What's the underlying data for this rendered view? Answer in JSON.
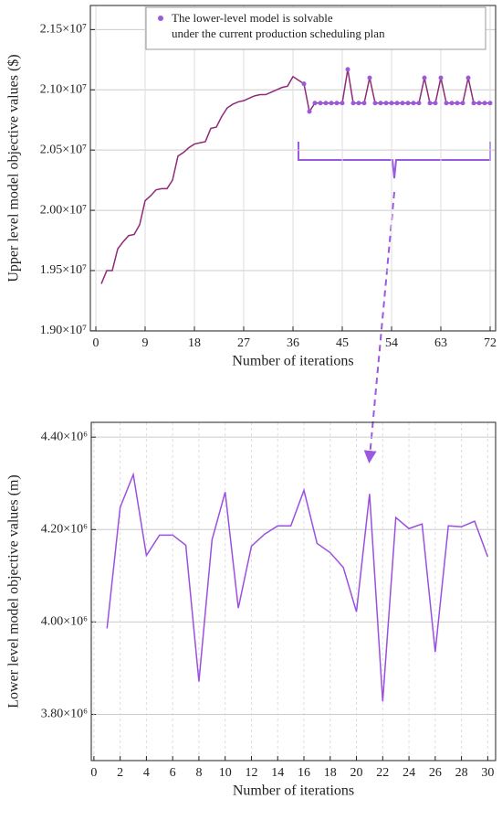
{
  "chart_data": [
    {
      "type": "line",
      "x_label": "Number of iterations",
      "y_label": "Upper level model objective values ($)",
      "x": [
        1,
        2,
        3,
        4,
        5,
        6,
        7,
        8,
        9,
        10,
        11,
        12,
        13,
        14,
        15,
        16,
        17,
        18,
        19,
        20,
        21,
        22,
        23,
        24,
        25,
        26,
        27,
        28,
        29,
        30,
        31,
        32,
        33,
        34,
        35,
        36,
        37,
        38,
        39,
        40,
        41,
        42,
        43,
        44,
        45,
        46,
        47,
        48,
        49,
        50,
        51,
        52,
        53,
        54,
        55,
        56,
        57,
        58,
        59,
        60,
        61,
        62,
        63,
        64,
        65,
        66,
        67,
        68,
        69,
        70,
        71,
        72
      ],
      "series": [
        {
          "color": "#8e2a78",
          "values": [
            19390000,
            19500000,
            19500000,
            19680000,
            19740000,
            19790000,
            19800000,
            19880000,
            20080000,
            20120000,
            20170000,
            20180000,
            20180000,
            20250000,
            20450000,
            20480000,
            20520000,
            20550000,
            20560000,
            20570000,
            20680000,
            20690000,
            20780000,
            20850000,
            20880000,
            20900000,
            20910000,
            20930000,
            20950000,
            20960000,
            20960000,
            20980000,
            21000000,
            21020000,
            21030000,
            21110000,
            21080000,
            21050000,
            20820000,
            20890000,
            20890000,
            20890000,
            20890000,
            20890000,
            20890000,
            21170000,
            20890000,
            20890000,
            20890000,
            21100000,
            20890000,
            20890000,
            20890000,
            20890000,
            20890000,
            20890000,
            20890000,
            20890000,
            20890000,
            21100000,
            20890000,
            20890000,
            21100000,
            20890000,
            20890000,
            20890000,
            20890000,
            21100000,
            20890000,
            20890000,
            20890000,
            20890000
          ]
        },
        {
          "name": "The lower-level model is solvable\nunder the current production scheduling plan",
          "color": "#9b59e0",
          "values": [
            null,
            null,
            null,
            null,
            null,
            null,
            null,
            null,
            null,
            null,
            null,
            null,
            null,
            null,
            null,
            null,
            null,
            null,
            null,
            null,
            null,
            null,
            null,
            null,
            null,
            null,
            null,
            null,
            null,
            null,
            null,
            null,
            null,
            null,
            null,
            null,
            null,
            21050000,
            20820000,
            20890000,
            20890000,
            20890000,
            20890000,
            20890000,
            20890000,
            21170000,
            20890000,
            20890000,
            20890000,
            21100000,
            20890000,
            20890000,
            20890000,
            20890000,
            20890000,
            20890000,
            20890000,
            20890000,
            20890000,
            21100000,
            20890000,
            20890000,
            21100000,
            20890000,
            20890000,
            20890000,
            20890000,
            21100000,
            20890000,
            20890000,
            20890000,
            20890000
          ]
        }
      ],
      "xlim": [
        -1,
        73
      ],
      "xticks": [
        0,
        9,
        18,
        27,
        36,
        45,
        54,
        63,
        72
      ],
      "ylim": [
        18999000,
        21700000
      ],
      "yticks": [
        {
          "value": 19000000,
          "label": "1.90×10⁷"
        },
        {
          "value": 19500000,
          "label": "1.95×10⁷"
        },
        {
          "value": 20000000,
          "label": "2.00×10⁷"
        },
        {
          "value": 20500000,
          "label": "2.05×10⁷"
        },
        {
          "value": 21000000,
          "label": "2.10×10⁷"
        },
        {
          "value": 21500000,
          "label": "2.15×10⁷"
        }
      ],
      "grid": true
    },
    {
      "type": "line",
      "x_label": "Number of iterations",
      "y_label": "Lower level model objective values (m)",
      "x": [
        1,
        2,
        3,
        4,
        5,
        6,
        7,
        8,
        9,
        10,
        11,
        12,
        13,
        14,
        15,
        16,
        17,
        18,
        19,
        20,
        21,
        22,
        23,
        24,
        25,
        26,
        27,
        28,
        29,
        30
      ],
      "series": [
        {
          "color": "#9b4fe0",
          "values": [
            3986000,
            4248000,
            4319000,
            4144000,
            4188000,
            4188000,
            4166000,
            3871000,
            4178000,
            4281000,
            4030000,
            4164000,
            4190000,
            4208000,
            4208000,
            4285000,
            4170000,
            4150000,
            4118000,
            4022000,
            4277000,
            3828000,
            4226000,
            4202000,
            4212000,
            3935000,
            4208000,
            4206000,
            4218000,
            4141000
          ]
        }
      ],
      "xlim": [
        -0.2,
        30.6
      ],
      "xticks": [
        0,
        2,
        4,
        6,
        8,
        10,
        12,
        14,
        16,
        18,
        20,
        22,
        24,
        26,
        28,
        30
      ],
      "ylim": [
        3700000,
        4432000
      ],
      "yticks": [
        {
          "value": 3800000,
          "label": "3.80×10⁶"
        },
        {
          "value": 4000000,
          "label": "4.00×10⁶"
        },
        {
          "value": 4200000,
          "label": "4.20×10⁶"
        },
        {
          "value": 4400000,
          "label": "4.40×10⁶"
        }
      ],
      "grid": true
    }
  ]
}
